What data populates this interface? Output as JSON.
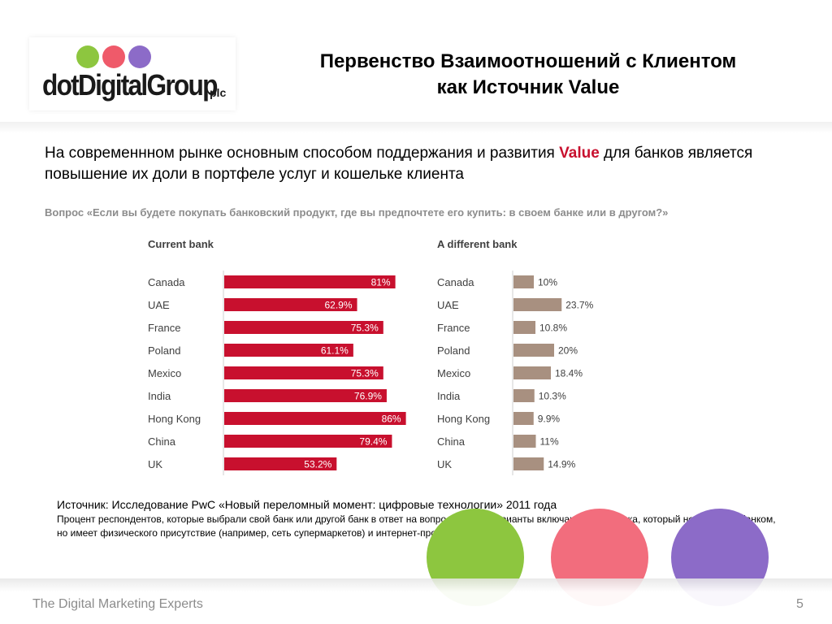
{
  "header": {
    "logo_text": "dotDigitalGroup",
    "logo_suffix": "plc",
    "title_line1": "Первенство Взаимоотношений с Клиентом",
    "title_line2": "как Источник Value"
  },
  "lead": {
    "part1": "На современнном рынке основным способом поддержания и развития ",
    "accent": "Value",
    "part2": " для банков является повышение их доли в портфеле услуг и кошельке клиента"
  },
  "question": "Вопрос «Если вы будете покупать банковский продукт, где вы предпочтете его купить: в своем банке или в другом?»",
  "chart_data": [
    {
      "type": "bar",
      "title": "Current bank",
      "categories": [
        "Canada",
        "UAE",
        "France",
        "Poland",
        "Mexico",
        "India",
        "Hong Kong",
        "China",
        "UK"
      ],
      "values": [
        81,
        62.9,
        75.3,
        61.1,
        75.3,
        76.9,
        86,
        79.4,
        53.2
      ],
      "labels": [
        "81%",
        "62.9%",
        "75.3%",
        "61.1%",
        "75.3%",
        "76.9%",
        "86%",
        "79.4%",
        "53.2%"
      ],
      "color": "#c8102e"
    },
    {
      "type": "bar",
      "title": "A different bank",
      "categories": [
        "Canada",
        "UAE",
        "France",
        "Poland",
        "Mexico",
        "India",
        "Hong Kong",
        "China",
        "UK"
      ],
      "values": [
        10,
        23.7,
        10.8,
        20,
        18.4,
        10.3,
        9.9,
        11,
        14.9
      ],
      "labels": [
        "10%",
        "23.7%",
        "10.8%",
        "20%",
        "18.4%",
        "10.3%",
        "9.9%",
        "11%",
        "14.9%"
      ],
      "color": "#a89080"
    }
  ],
  "source": {
    "line1": "Источник: Исследование PwC «Новый переломный момент: цифровые технологии» 2011 года",
    "line2": "Процент респондентов, которые выбрали свой банк или другой банк в ответ на вопрос. Другие варианты включают поставщика, который не является банком, но имеет физического присутствие (например, сеть супермаркетов) и интернет-провайдера."
  },
  "footer": {
    "tagline": "The Digital Marketing Experts",
    "page_number": "5"
  }
}
